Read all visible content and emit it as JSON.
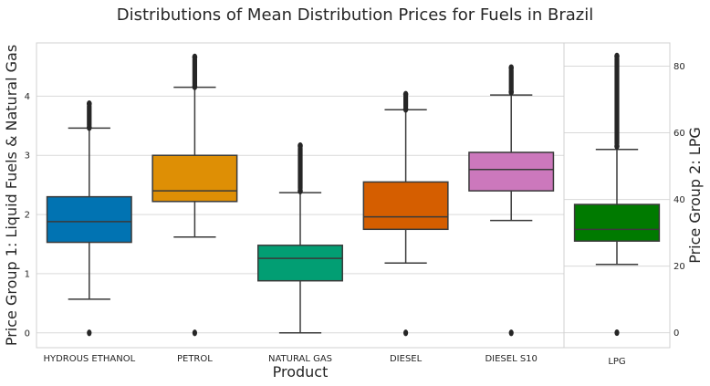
{
  "chart_data": {
    "type": "box",
    "title": "Distributions of Mean Distribution Prices for Fuels in Brazil",
    "xlabel": "Product",
    "panels": [
      {
        "ylabel": "Price Group 1: Liquid Fuels & Natural Gas",
        "ylim": [
          -0.25,
          4.9
        ],
        "yticks": [
          0,
          1,
          2,
          3,
          4
        ],
        "grid": true,
        "boxes": [
          {
            "category": "HYDROUS ETHANOL",
            "color": "#0173b2",
            "whisker_low": 0.57,
            "q1": 1.53,
            "median": 1.88,
            "q3": 2.3,
            "whisker_high": 3.46,
            "outliers_low": [
              0.0
            ],
            "outliers_high_range": [
              3.47,
              3.87
            ]
          },
          {
            "category": "PETROL",
            "color": "#de8f05",
            "whisker_low": 1.62,
            "q1": 2.22,
            "median": 2.4,
            "q3": 3.0,
            "whisker_high": 4.15,
            "outliers_low": [
              0.0
            ],
            "outliers_high_range": [
              4.16,
              4.66
            ]
          },
          {
            "category": "NATURAL GAS",
            "color": "#029e73",
            "whisker_low": 0.0,
            "q1": 0.88,
            "median": 1.26,
            "q3": 1.48,
            "whisker_high": 2.37,
            "outliers_low": [],
            "outliers_high_range": [
              2.4,
              3.16
            ]
          },
          {
            "category": "DIESEL",
            "color": "#d55e00",
            "whisker_low": 1.18,
            "q1": 1.75,
            "median": 1.96,
            "q3": 2.55,
            "whisker_high": 3.77,
            "outliers_low": [
              0.0
            ],
            "outliers_high_range": [
              3.78,
              4.03
            ]
          },
          {
            "category": "DIESEL S10",
            "color": "#cc78bc",
            "whisker_low": 1.9,
            "q1": 2.4,
            "median": 2.76,
            "q3": 3.05,
            "whisker_high": 4.02,
            "outliers_low": [
              0.0
            ],
            "outliers_high_range": [
              4.07,
              4.48
            ]
          }
        ]
      },
      {
        "ylabel": "Price Group 2: LPG",
        "ylim": [
          -4.5,
          87
        ],
        "yticks": [
          0,
          20,
          40,
          60,
          80
        ],
        "grid": true,
        "boxes": [
          {
            "category": "LPG",
            "color": "#007a00",
            "whisker_low": 20.5,
            "q1": 27.5,
            "median": 31.0,
            "q3": 38.5,
            "whisker_high": 55.0,
            "outliers_low": [
              0.0
            ],
            "outliers_high_range": [
              56.0,
              83.0
            ]
          }
        ]
      }
    ]
  }
}
